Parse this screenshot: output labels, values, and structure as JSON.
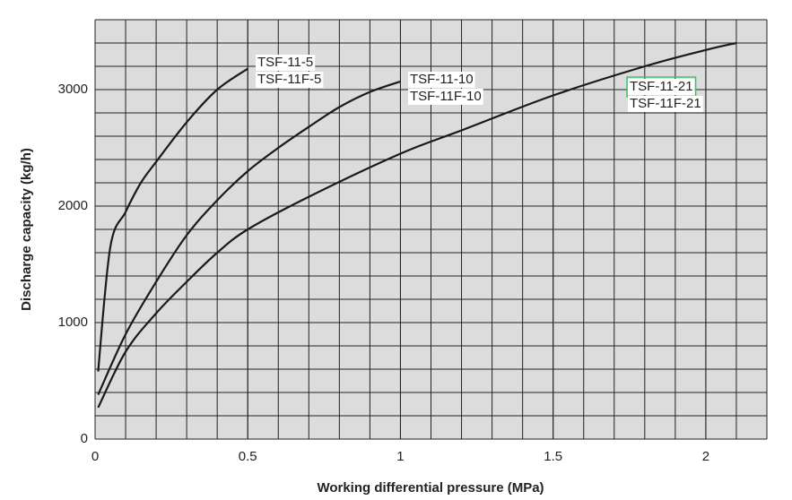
{
  "chart_data": {
    "type": "line",
    "x_label": "Working differential pressure (MPa)",
    "y_label": "Discharge capacity (kg/h)",
    "xlim": [
      0,
      2.2
    ],
    "ylim": [
      0,
      3600
    ],
    "xticks": [
      0,
      0.5,
      1,
      1.5,
      2
    ],
    "yticks": [
      0,
      1000,
      2000,
      3000
    ],
    "grid": true,
    "series": [
      {
        "labels": [
          "TSF-11-5",
          "TSF-11F-5"
        ],
        "color": "#1a1a1a",
        "x": [
          0.01,
          0.05,
          0.1,
          0.15,
          0.2,
          0.3,
          0.4,
          0.5
        ],
        "values": [
          580,
          1650,
          1950,
          2200,
          2380,
          2720,
          3000,
          3180
        ]
      },
      {
        "labels": [
          "TSF-11-10",
          "TSF-11F-10"
        ],
        "color": "#1a1a1a",
        "x": [
          0.01,
          0.1,
          0.2,
          0.3,
          0.4,
          0.5,
          0.6,
          0.7,
          0.8,
          0.9,
          1.0
        ],
        "values": [
          380,
          900,
          1350,
          1750,
          2050,
          2300,
          2500,
          2680,
          2850,
          2980,
          3070
        ]
      },
      {
        "labels": [
          "TSF-11-21",
          "TSF-11F-21"
        ],
        "color": "#1a1a1a",
        "x": [
          0.01,
          0.1,
          0.2,
          0.3,
          0.4,
          0.5,
          0.7,
          1.0,
          1.2,
          1.5,
          1.8,
          2.0,
          2.1
        ],
        "values": [
          270,
          750,
          1080,
          1350,
          1600,
          1800,
          2080,
          2450,
          2650,
          2950,
          3200,
          3340,
          3400
        ]
      }
    ]
  }
}
